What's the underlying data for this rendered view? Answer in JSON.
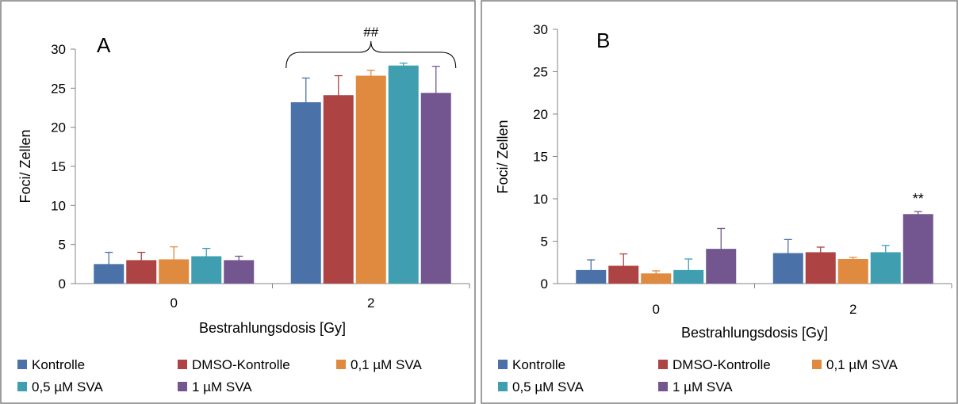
{
  "chart_data": [
    {
      "type": "bar",
      "panel_label": "A",
      "categories": [
        "0",
        "2"
      ],
      "xlabel": "Bestrahlungsdosis [Gy]",
      "ylabel": "Foci/ Zellen",
      "ylim": [
        0,
        30
      ],
      "yticks": [
        0,
        5,
        10,
        15,
        20,
        25,
        30
      ],
      "grid": false,
      "legend_position": "bottom",
      "series": [
        {
          "name": "Kontrolle",
          "color": "#4a72a8",
          "values": [
            2.5,
            23.2
          ],
          "errors": [
            1.5,
            3.1
          ]
        },
        {
          "name": "DMSO-Kontrolle",
          "color": "#ad4343",
          "values": [
            3.0,
            24.1
          ],
          "errors": [
            1.0,
            2.5
          ]
        },
        {
          "name": "0,1 µM SVA",
          "color": "#e08a40",
          "values": [
            3.1,
            26.6
          ],
          "errors": [
            1.6,
            0.7
          ]
        },
        {
          "name": "0,5 µM SVA",
          "color": "#3f9fb0",
          "values": [
            3.5,
            27.9
          ],
          "errors": [
            1.0,
            0.3
          ]
        },
        {
          "name": "1 µM SVA",
          "color": "#735690",
          "values": [
            3.0,
            24.4
          ],
          "errors": [
            0.5,
            3.4
          ]
        }
      ],
      "annotations": [
        {
          "text": "##",
          "category": "2",
          "type": "brace"
        }
      ]
    },
    {
      "type": "bar",
      "panel_label": "B",
      "categories": [
        "0",
        "2"
      ],
      "xlabel": "Bestrahlungsdosis [Gy]",
      "ylabel": "Foci/ Zellen",
      "ylim": [
        0,
        30
      ],
      "yticks": [
        0,
        5,
        10,
        15,
        20,
        25,
        30
      ],
      "grid": false,
      "legend_position": "bottom",
      "series": [
        {
          "name": "Kontrolle",
          "color": "#4a72a8",
          "values": [
            1.6,
            3.6
          ],
          "errors": [
            1.2,
            1.6
          ]
        },
        {
          "name": "DMSO-Kontrolle",
          "color": "#ad4343",
          "values": [
            2.1,
            3.7
          ],
          "errors": [
            1.4,
            0.6
          ]
        },
        {
          "name": "0,1 µM SVA",
          "color": "#e08a40",
          "values": [
            1.2,
            2.9
          ],
          "errors": [
            0.3,
            0.2
          ]
        },
        {
          "name": "0,5 µM SVA",
          "color": "#3f9fb0",
          "values": [
            1.6,
            3.7
          ],
          "errors": [
            1.3,
            0.8
          ]
        },
        {
          "name": "1 µM SVA",
          "color": "#735690",
          "values": [
            4.1,
            8.2
          ],
          "errors": [
            2.4,
            0.3
          ]
        }
      ],
      "annotations": [
        {
          "text": "**",
          "category": "2",
          "series": "1 µM SVA",
          "type": "label"
        }
      ]
    }
  ]
}
